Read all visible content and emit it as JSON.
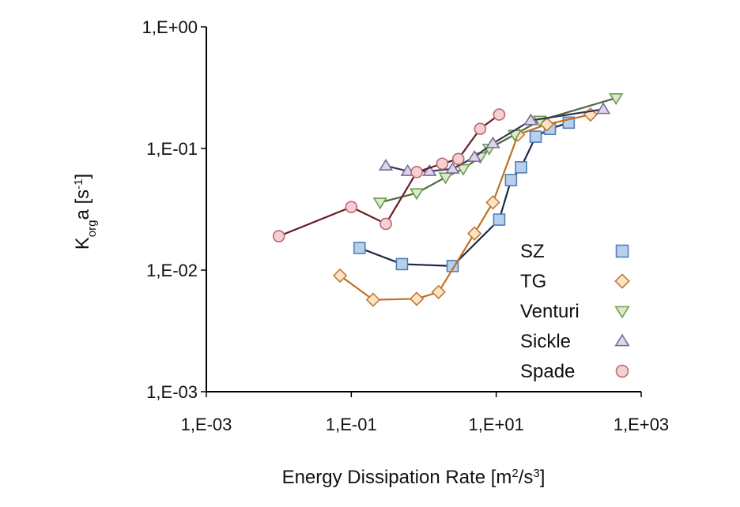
{
  "chart_data": {
    "type": "scatter",
    "title": "",
    "xlabel": "Energy Dissipation Rate [m²/s³]",
    "xlabel_parts": [
      "Energy Dissipation Rate [m",
      "2",
      "/s",
      "3",
      "]"
    ],
    "ylabel": "Korga [s⁻¹]",
    "ylabel_parts": [
      "K",
      "org",
      "a [s",
      "-1",
      "]"
    ],
    "x_scale": "log",
    "y_scale": "log",
    "xlim": [
      0.001,
      1000
    ],
    "ylim": [
      0.001,
      1
    ],
    "x_ticks": [
      0.001,
      0.1,
      10,
      1000
    ],
    "x_tick_labels": [
      "1,E-03",
      "1,E-01",
      "1,E+01",
      "1,E+03"
    ],
    "y_ticks": [
      0.001,
      0.01,
      0.1,
      1
    ],
    "y_tick_labels": [
      "1,E-03",
      "1,E-02",
      "1,E-01",
      "1,E+00"
    ],
    "grid": false,
    "legend_position": "bottom-right",
    "series": [
      {
        "name": "SZ",
        "marker": "square",
        "color": "#1b2a44",
        "fill": "#b9d0ec",
        "stroke": "#4f7fb8",
        "x": [
          0.13,
          0.5,
          2.5,
          11,
          16,
          22,
          35,
          55,
          100
        ],
        "y": [
          0.0152,
          0.0112,
          0.0108,
          0.026,
          0.055,
          0.07,
          0.125,
          0.145,
          0.163
        ]
      },
      {
        "name": "TG",
        "marker": "diamond",
        "color": "#c07020",
        "fill": "#fbe3c4",
        "stroke": "#c07a3a",
        "x": [
          0.07,
          0.2,
          0.8,
          1.6,
          5,
          9,
          20,
          50,
          200
        ],
        "y": [
          0.009,
          0.0057,
          0.0058,
          0.0066,
          0.02,
          0.036,
          0.13,
          0.158,
          0.19
        ]
      },
      {
        "name": "Venturi",
        "marker": "triangle-down",
        "color": "#4a6a3a",
        "fill": "#dbe9cc",
        "stroke": "#6f9a4e",
        "x": [
          0.25,
          0.8,
          2,
          3.5,
          6,
          8,
          18,
          40,
          450
        ],
        "y": [
          0.036,
          0.043,
          0.058,
          0.068,
          0.085,
          0.1,
          0.13,
          0.17,
          0.26
        ]
      },
      {
        "name": "Sickle",
        "marker": "triangle-up",
        "color": "#3a3458",
        "fill": "#ddd6e8",
        "stroke": "#7a6a9a",
        "x": [
          0.3,
          0.6,
          1.2,
          2.5,
          5,
          9,
          30,
          300
        ],
        "y": [
          0.072,
          0.065,
          0.065,
          0.068,
          0.085,
          0.11,
          0.17,
          0.21
        ]
      },
      {
        "name": "Spade",
        "marker": "circle",
        "color": "#6a1a2a",
        "fill": "#f6cfd2",
        "stroke": "#b86a72",
        "x": [
          0.01,
          0.1,
          0.3,
          0.8,
          1.8,
          3,
          6,
          11
        ],
        "y": [
          0.019,
          0.033,
          0.024,
          0.064,
          0.075,
          0.082,
          0.145,
          0.19
        ]
      }
    ]
  }
}
